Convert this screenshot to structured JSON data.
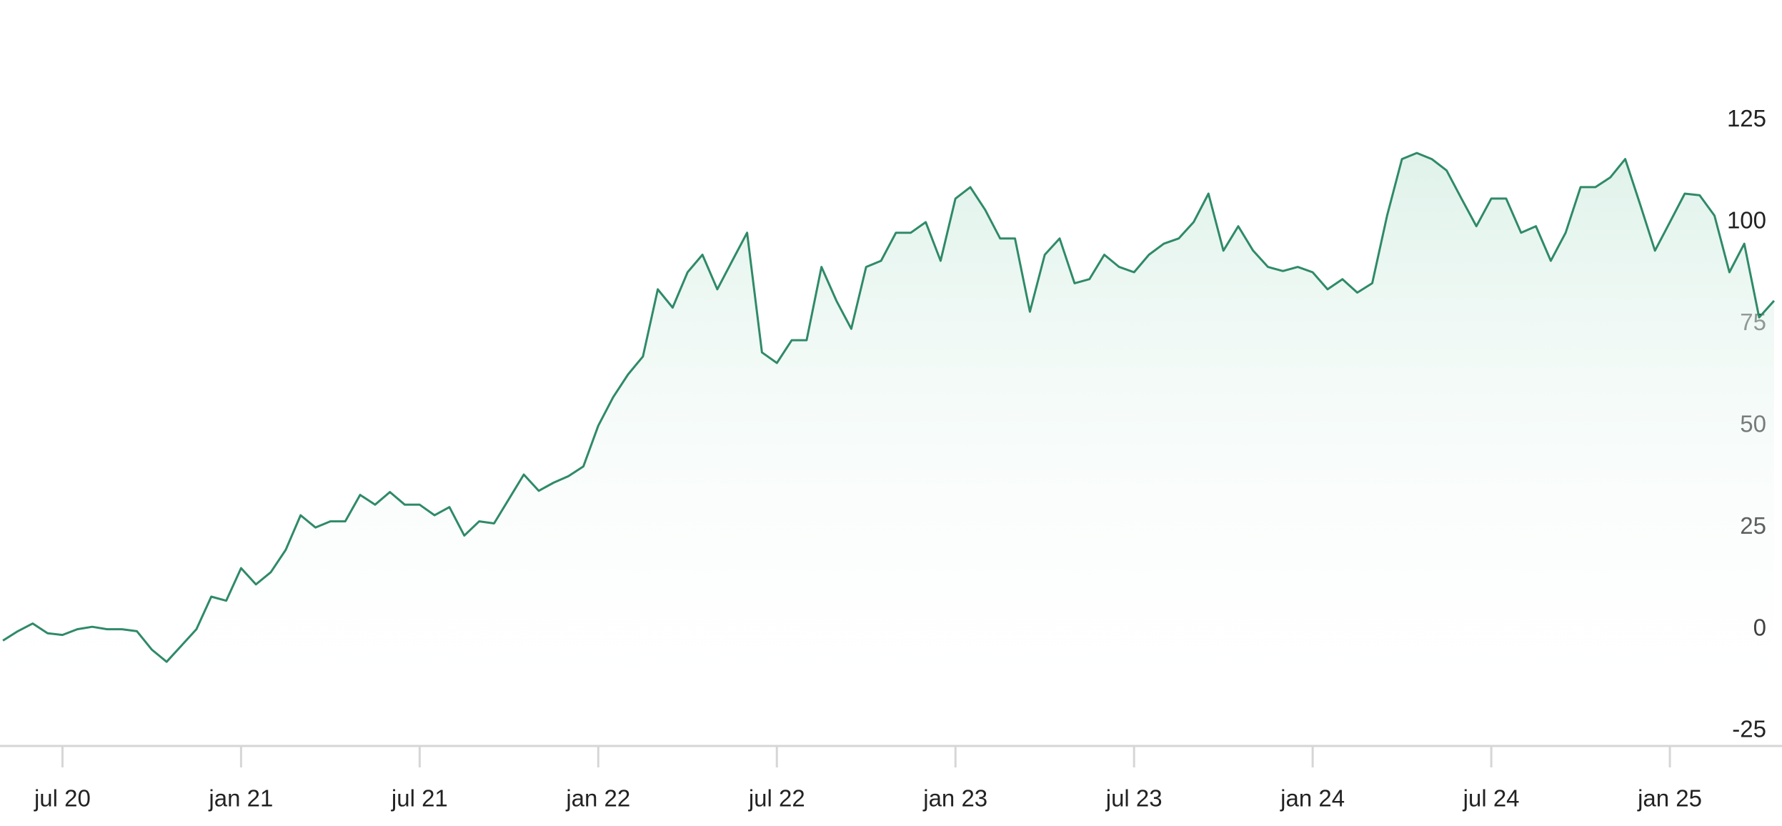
{
  "chart_data": {
    "type": "area",
    "color": "#2f8a68",
    "grid": false,
    "categories": [
      null,
      null,
      null,
      null,
      "jul 20",
      null,
      null,
      null,
      null,
      null,
      null,
      null,
      null,
      null,
      null,
      null,
      "jan 21",
      null,
      null,
      null,
      null,
      null,
      null,
      null,
      null,
      null,
      null,
      null,
      "jul 21",
      null,
      null,
      null,
      null,
      null,
      null,
      null,
      null,
      null,
      null,
      null,
      "jan 22",
      null,
      null,
      null,
      null,
      null,
      null,
      null,
      null,
      null,
      null,
      null,
      "jul 22",
      null,
      null,
      null,
      null,
      null,
      null,
      null,
      null,
      null,
      null,
      null,
      "jan 23",
      null,
      null,
      null,
      null,
      null,
      null,
      null,
      null,
      null,
      null,
      null,
      "jul 23",
      null,
      null,
      null,
      null,
      null,
      null,
      null,
      null,
      null,
      null,
      null,
      "jan 24",
      null,
      null,
      null,
      null,
      null,
      null,
      null,
      null,
      null,
      null,
      null,
      "jul 24",
      null,
      null,
      null,
      null,
      null,
      null,
      null,
      null,
      null,
      null,
      null,
      "jan 25",
      null,
      null,
      null,
      null,
      null,
      null,
      null
    ],
    "values": [
      -2.8,
      -0.5,
      1.4,
      -1,
      -1.4,
      0,
      0.6,
      0,
      0,
      -0.5,
      -5,
      -8,
      -4,
      0,
      8,
      7,
      15,
      11,
      14,
      19.5,
      28,
      25,
      26.5,
      26.5,
      33,
      30.6,
      33.7,
      30.6,
      30.6,
      28,
      30,
      23,
      26.5,
      26,
      32,
      38,
      34,
      36,
      37.6,
      40,
      50,
      57,
      62.6,
      67,
      83.5,
      79,
      87.7,
      92,
      83.5,
      90.5,
      97.4,
      68,
      65.4,
      71,
      71,
      89,
      80.7,
      73.8,
      89,
      90.5,
      97.4,
      97.4,
      100,
      90.5,
      105.8,
      108.6,
      103,
      96,
      96,
      78,
      92,
      96,
      85,
      86,
      92,
      89,
      87.7,
      92,
      94.7,
      96,
      100,
      107,
      93,
      99,
      93,
      89,
      88,
      89,
      87.7,
      83.5,
      86,
      82.7,
      85,
      101.6,
      115.5,
      117,
      115.5,
      112.7,
      105.8,
      99,
      105.8,
      105.8,
      97.4,
      99,
      90.5,
      97.4,
      108.6,
      108.6,
      111,
      115.5,
      104.4,
      93,
      100,
      107,
      106.6,
      101.6,
      87.7,
      94.7,
      76.6,
      80.7
    ],
    "ylim": [
      -25,
      125
    ],
    "yticks": [
      -25,
      0,
      25,
      50,
      75,
      100,
      125
    ]
  }
}
